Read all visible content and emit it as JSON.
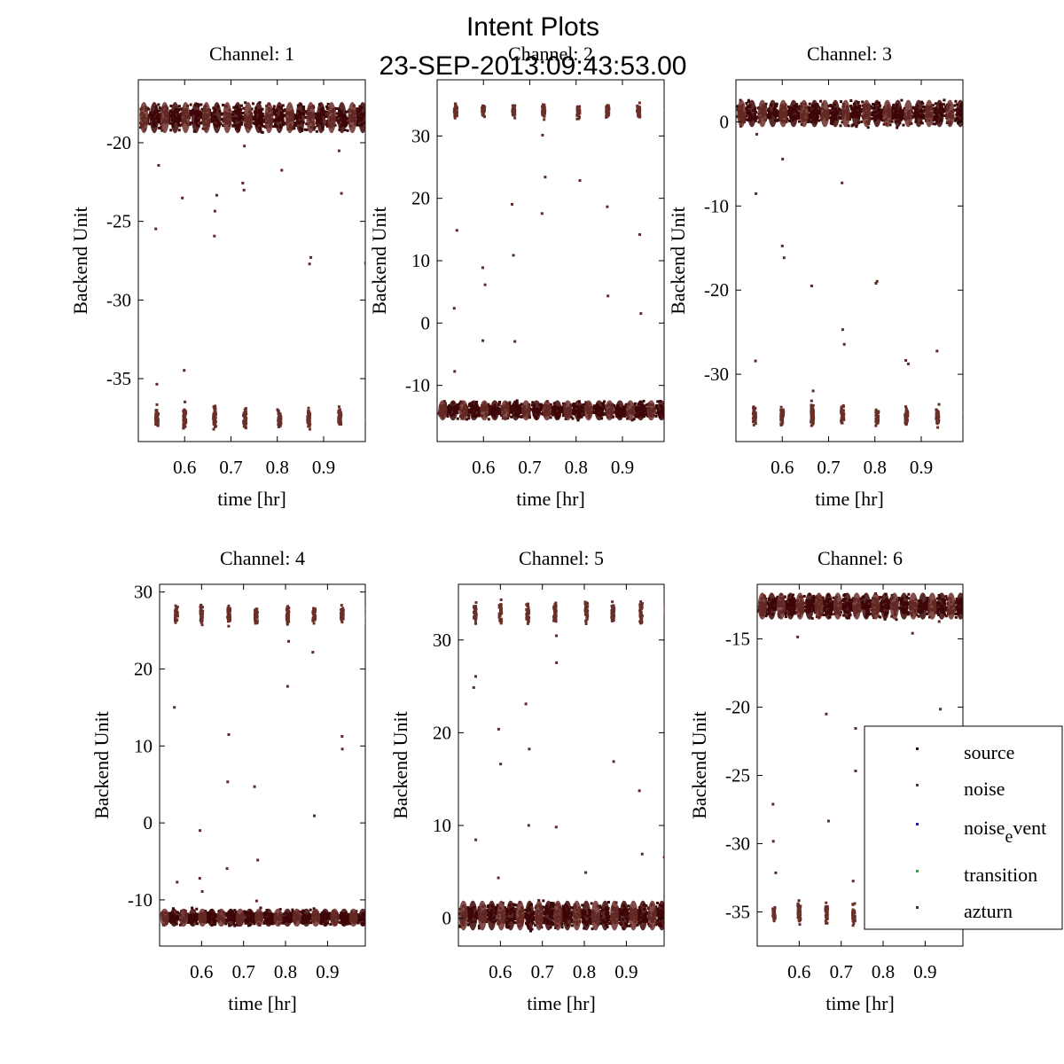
{
  "figure": {
    "title_line1": "Intent Plots",
    "title_line2": "23-SEP-2013:09:43:53.00"
  },
  "colors": {
    "source": "#3d0606",
    "noise": "#6b2f2a",
    "noise_event": "#1a1adb",
    "transition": "#22b02a",
    "azturn": "#5a2a26",
    "axis": "#000000"
  },
  "legend": {
    "entries": [
      {
        "key": "source",
        "text": "source"
      },
      {
        "key": "noise",
        "text": "noise"
      },
      {
        "key": "noise_event",
        "text": "noise",
        "sub": "e",
        "rest": "vent"
      },
      {
        "key": "transition",
        "text": "transition"
      },
      {
        "key": "azturn",
        "text": "azturn"
      }
    ]
  },
  "chart_data": [
    {
      "type": "scatter",
      "title": "Channel: 1",
      "xlabel": "time [hr]",
      "ylabel": "Backend Unit",
      "xlim": [
        0.5,
        0.99
      ],
      "ylim": [
        -39,
        -16
      ],
      "xticks": [
        0.6,
        0.7,
        0.8,
        0.9
      ],
      "yticks": [
        -35,
        -30,
        -25,
        -20
      ],
      "band_high": {
        "center": -18.4,
        "spread": 1.1
      },
      "band_low": {
        "center": -37.5,
        "spread": 1.0
      },
      "low_is_source": false,
      "source_bursts": true
    },
    {
      "type": "scatter",
      "title": "Channel: 2",
      "xlabel": "time [hr]",
      "ylabel": "Backend Unit",
      "xlim": [
        0.5,
        0.99
      ],
      "ylim": [
        -19,
        39
      ],
      "xticks": [
        0.6,
        0.7,
        0.8,
        0.9
      ],
      "yticks": [
        -10,
        0,
        10,
        20,
        30
      ],
      "band_high": {
        "center": 34.0,
        "spread": 1.6
      },
      "band_low": {
        "center": -14.0,
        "spread": 1.8
      },
      "low_is_source": true,
      "source_bursts": true
    },
    {
      "type": "scatter",
      "title": "Channel: 3",
      "xlabel": "time [hr]",
      "ylabel": "Backend Unit",
      "xlim": [
        0.5,
        0.99
      ],
      "ylim": [
        -38,
        5
      ],
      "xticks": [
        0.6,
        0.7,
        0.8,
        0.9
      ],
      "yticks": [
        -30,
        -20,
        -10,
        0
      ],
      "band_high": {
        "center": 1.0,
        "spread": 1.8
      },
      "band_low": {
        "center": -35.0,
        "spread": 1.6
      },
      "low_is_source": false,
      "source_bursts": true
    },
    {
      "type": "scatter",
      "title": "Channel: 4",
      "xlabel": "time [hr]",
      "ylabel": "Backend Unit",
      "xlim": [
        0.5,
        0.99
      ],
      "ylim": [
        -16,
        31
      ],
      "xticks": [
        0.6,
        0.7,
        0.8,
        0.9
      ],
      "yticks": [
        -10,
        0,
        10,
        20,
        30
      ],
      "band_high": {
        "center": 27.0,
        "spread": 1.6
      },
      "band_low": {
        "center": -12.3,
        "spread": 1.3
      },
      "low_is_source": true,
      "source_bursts": true
    },
    {
      "type": "scatter",
      "title": "Channel: 5",
      "xlabel": "time [hr]",
      "ylabel": "Backend Unit",
      "xlim": [
        0.5,
        0.99
      ],
      "ylim": [
        -3,
        36
      ],
      "xticks": [
        0.6,
        0.7,
        0.8,
        0.9
      ],
      "yticks": [
        0,
        10,
        20,
        30
      ],
      "band_high": {
        "center": 33.0,
        "spread": 1.6
      },
      "band_low": {
        "center": 0.3,
        "spread": 1.8
      },
      "low_is_source": true,
      "source_bursts": true
    },
    {
      "type": "scatter",
      "title": "Channel: 6",
      "xlabel": "time [hr]",
      "ylabel": "Backend Unit",
      "xlim": [
        0.5,
        0.99
      ],
      "ylim": [
        -37.5,
        -11
      ],
      "xticks": [
        0.6,
        0.7,
        0.8,
        0.9
      ],
      "yticks": [
        -35,
        -30,
        -25,
        -20,
        -15
      ],
      "band_high": {
        "center": -12.6,
        "spread": 1.1
      },
      "band_low": {
        "center": -35.2,
        "spread": 1.0
      },
      "low_is_source": false,
      "source_bursts": true
    }
  ]
}
